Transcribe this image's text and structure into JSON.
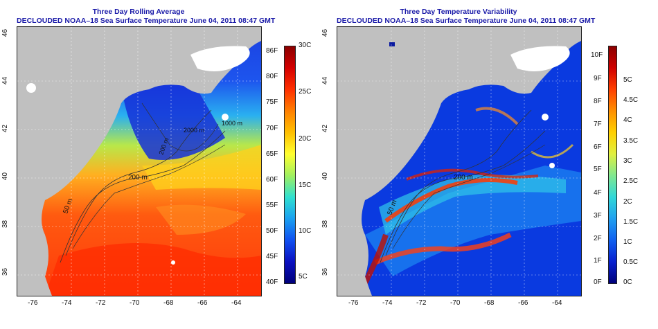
{
  "left_panel": {
    "title": "Three Day Rolling Average",
    "subtitle": "DECLOUDED NOAA–18 Sea Surface Temperature June 04, 2011 08:47 GMT",
    "lon_ticks": [
      "-76",
      "-74",
      "-72",
      "-70",
      "-68",
      "-66",
      "-64"
    ],
    "lat_ticks": [
      "46",
      "44",
      "42",
      "40",
      "38",
      "36"
    ],
    "contour_labels": [
      "50 m",
      "200 m",
      "200 m",
      "2000 m",
      "1000 m"
    ],
    "colorbar": {
      "fahrenheit": [
        "86F",
        "80F",
        "75F",
        "70F",
        "65F",
        "60F",
        "55F",
        "50F",
        "45F",
        "40F"
      ],
      "celsius": [
        "30C",
        "25C",
        "20C",
        "15C",
        "10C",
        "5C"
      ]
    }
  },
  "right_panel": {
    "title": "Three Day Temperature Variability",
    "subtitle": "DECLOUDED NOAA–18 Sea Surface Temperature June 04, 2011 08:47 GMT",
    "lon_ticks": [
      "-76",
      "-74",
      "-72",
      "-70",
      "-68",
      "-66",
      "-64"
    ],
    "lat_ticks": [
      "46",
      "44",
      "42",
      "40",
      "38",
      "36"
    ],
    "contour_labels": [
      "50 m",
      "200 m"
    ],
    "colorbar": {
      "fahrenheit": [
        "10F",
        "9F",
        "8F",
        "7F",
        "6F",
        "5F",
        "4F",
        "3F",
        "2F",
        "1F",
        "0F"
      ],
      "celsius": [
        "5C",
        "4.5C",
        "4C",
        "3.5C",
        "3C",
        "2.5C",
        "2C",
        "1.5C",
        "1C",
        "0.5C",
        "0C"
      ]
    }
  },
  "colors": {
    "land": "#c0c0c0",
    "title": "#1a1aa8"
  }
}
